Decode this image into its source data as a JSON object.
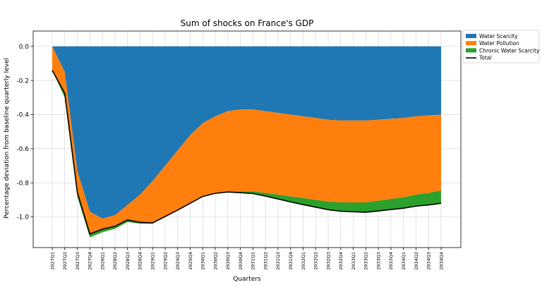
{
  "chart_data": {
    "type": "area",
    "title": "Sum of shocks on France's GDP",
    "xlabel": "Quarters",
    "ylabel": "Percentage deviation from baseline quarterly level",
    "ylim": [
      -1.18,
      0.09
    ],
    "yticks": [
      "0.0",
      "-0.2",
      "-0.4",
      "-0.6",
      "-0.8",
      "-1.0"
    ],
    "ytick_values": [
      0.0,
      -0.2,
      -0.4,
      -0.6,
      -0.8,
      -1.0
    ],
    "grid": true,
    "legend_position": "upper-right-outside",
    "categories": [
      "2027Q1",
      "2027Q2",
      "2027Q3",
      "2027Q4",
      "2028Q1",
      "2028Q2",
      "2028Q3",
      "2028Q4",
      "2029Q1",
      "2029Q2",
      "2029Q3",
      "2029Q4",
      "2030Q1",
      "2030Q2",
      "2030Q3",
      "2030Q4",
      "2031Q1",
      "2031Q2",
      "2031Q3",
      "2031Q4",
      "2032Q1",
      "2032Q2",
      "2032Q3",
      "2032Q4",
      "2033Q1",
      "2033Q2",
      "2033Q3",
      "2033Q4",
      "2034Q1",
      "2034Q2",
      "2034Q3",
      "2034Q4"
    ],
    "series": [
      {
        "name": "Water Scarcity",
        "color": "#1f77b4",
        "values": [
          0,
          -0.15,
          -0.73,
          -0.97,
          -1.01,
          -0.99,
          -0.93,
          -0.87,
          -0.79,
          -0.7,
          -0.61,
          -0.52,
          -0.45,
          -0.41,
          -0.38,
          -0.37,
          -0.37,
          -0.38,
          -0.39,
          -0.4,
          -0.41,
          -0.42,
          -0.43,
          -0.435,
          -0.435,
          -0.435,
          -0.43,
          -0.425,
          -0.42,
          -0.41,
          -0.405,
          -0.4
        ]
      },
      {
        "name": "Water Pollution",
        "color": "#ff7f0e",
        "values": [
          -0.14,
          -0.15,
          -0.15,
          -0.15,
          -0.08,
          -0.08,
          -0.1,
          -0.17,
          -0.25,
          -0.3,
          -0.35,
          -0.4,
          -0.43,
          -0.45,
          -0.47,
          -0.48,
          -0.48,
          -0.48,
          -0.48,
          -0.48,
          -0.48,
          -0.48,
          -0.48,
          -0.48,
          -0.48,
          -0.48,
          -0.475,
          -0.47,
          -0.465,
          -0.46,
          -0.455,
          -0.445
        ]
      },
      {
        "name": "Chronic Water Scarcity",
        "color": "#2ca02c",
        "values": [
          0,
          0.025,
          0.025,
          0.02,
          0.018,
          0.015,
          0.012,
          0.008,
          0.005,
          0.002,
          0,
          0,
          0,
          -0.002,
          -0.004,
          -0.008,
          -0.013,
          -0.018,
          -0.025,
          -0.032,
          -0.038,
          -0.043,
          -0.048,
          -0.052,
          -0.055,
          -0.058,
          -0.06,
          -0.062,
          -0.064,
          -0.067,
          -0.07,
          -0.075
        ]
      },
      {
        "name": "Total",
        "color": "#000000",
        "values": [
          -0.14,
          -0.275,
          -0.855,
          -1.1,
          -1.072,
          -1.055,
          -1.018,
          -1.032,
          -1.035,
          -0.998,
          -0.96,
          -0.92,
          -0.88,
          -0.862,
          -0.854,
          -0.858,
          -0.863,
          -0.878,
          -0.895,
          -0.912,
          -0.928,
          -0.943,
          -0.958,
          -0.967,
          -0.97,
          -0.973,
          -0.965,
          -0.957,
          -0.949,
          -0.937,
          -0.93,
          -0.92
        ]
      }
    ]
  }
}
